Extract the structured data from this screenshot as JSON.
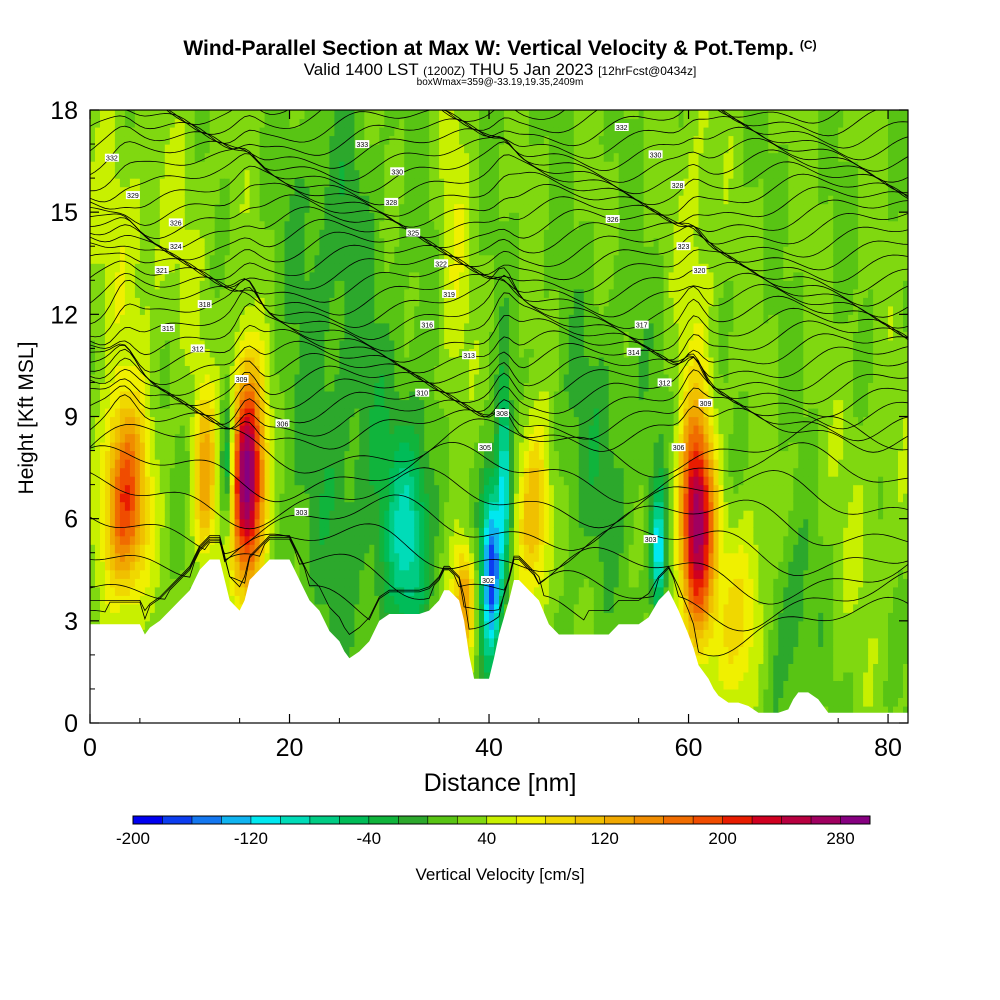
{
  "chart_data": {
    "type": "heatmap",
    "title": "Wind-Parallel Section at Max W: Vertical Velocity & Pot.Temp.",
    "title_tag": "(C)",
    "subtitle_parts": [
      "Valid 1400 LST ",
      "(1200Z)",
      " THU 5 Jan 2023 ",
      "[12hrFcst@0434z]"
    ],
    "subtitle2": "boxWmax=359@-33.19,19.35,2409m",
    "xlabel": "Distance [nm]",
    "ylabel": "Height [Kft MSL]",
    "xlim": [
      0,
      82
    ],
    "ylim": [
      0,
      18
    ],
    "xticks": [
      0,
      20,
      40,
      60,
      80
    ],
    "yticks": [
      0,
      3,
      6,
      9,
      12,
      15,
      18
    ],
    "colorbar": {
      "label": "Vertical Velocity [cm/s]",
      "ticks": [
        -200,
        -120,
        -40,
        40,
        120,
        200,
        280
      ],
      "levels": [
        -200,
        -180,
        -160,
        -140,
        -120,
        -100,
        -80,
        -60,
        -40,
        -20,
        0,
        20,
        40,
        60,
        80,
        100,
        120,
        140,
        160,
        180,
        200,
        220,
        240,
        260,
        280,
        300
      ],
      "colors": [
        "#0000f0",
        "#0c3df0",
        "#1477f0",
        "#10b4f0",
        "#00e8f0",
        "#00dcb8",
        "#00cc84",
        "#00bc58",
        "#10b43c",
        "#2ca82c",
        "#58c414",
        "#80d810",
        "#c8f000",
        "#f0f000",
        "#f0d800",
        "#f0c000",
        "#f0a800",
        "#f08c00",
        "#f06c00",
        "#f04c00",
        "#e81c00",
        "#d00020",
        "#b80040",
        "#a00060",
        "#860080"
      ]
    },
    "terrain": {
      "x": [
        0,
        5,
        5.5,
        6,
        7,
        8,
        9,
        10,
        10.5,
        11,
        12,
        13,
        13.5,
        14,
        15,
        15.5,
        16,
        17,
        18,
        19,
        20,
        21,
        21.5,
        22,
        23,
        23.5,
        24,
        25,
        25.5,
        26,
        27,
        28,
        28.5,
        29,
        30,
        31,
        32,
        33,
        34,
        35,
        35.5,
        36,
        37,
        37.5,
        38,
        38.5,
        39,
        40,
        40.5,
        41,
        42,
        42.5,
        43,
        44,
        45,
        46,
        47,
        48,
        49,
        50,
        51,
        52,
        53,
        54,
        55,
        56,
        57,
        58,
        59,
        60,
        60.5,
        61,
        62,
        62.5,
        63,
        64,
        65,
        66,
        67,
        68,
        69,
        70,
        70.5,
        71,
        72,
        73,
        74,
        75,
        76,
        77,
        78,
        79,
        80,
        81,
        82
      ],
      "y": [
        2.9,
        2.9,
        2.6,
        2.8,
        3.0,
        3.3,
        3.6,
        3.9,
        4.2,
        4.5,
        4.8,
        4.8,
        4.2,
        3.6,
        3.3,
        3.6,
        4.2,
        4.5,
        4.8,
        4.8,
        4.8,
        4.2,
        3.9,
        3.6,
        3.3,
        3.0,
        2.7,
        2.4,
        2.1,
        1.9,
        2.1,
        2.4,
        2.7,
        3.0,
        3.2,
        3.2,
        3.2,
        3.2,
        3.3,
        3.6,
        3.9,
        3.9,
        3.6,
        3.0,
        2.0,
        1.3,
        1.3,
        1.3,
        1.9,
        2.6,
        3.6,
        4.2,
        4.2,
        3.9,
        3.6,
        2.9,
        2.6,
        2.6,
        2.6,
        2.6,
        2.6,
        2.6,
        2.9,
        2.9,
        2.9,
        3.1,
        3.6,
        3.9,
        3.3,
        2.6,
        2.2,
        1.7,
        1.3,
        1.0,
        0.8,
        0.6,
        0.6,
        0.5,
        0.3,
        0.3,
        0.3,
        0.4,
        0.7,
        0.9,
        0.9,
        0.7,
        0.3,
        0.3,
        0.3,
        0.3,
        0.3,
        0.3,
        0.3,
        0.3,
        0.3
      ]
    },
    "w_cells": [
      {
        "x": 3.5,
        "y": 6.5,
        "sx": 1.5,
        "sy": 2.0,
        "w": 180
      },
      {
        "x": 11.5,
        "y": 7.2,
        "sx": 0.8,
        "sy": 1.8,
        "w": 110
      },
      {
        "x": 13.8,
        "y": 7.5,
        "sx": 0.5,
        "sy": 1.5,
        "w": -110
      },
      {
        "x": 15.8,
        "y": 7.2,
        "sx": 1.2,
        "sy": 2.2,
        "w": 290
      },
      {
        "x": 4,
        "y": 14,
        "sx": 6,
        "sy": 3,
        "w": 25
      },
      {
        "x": 27,
        "y": 7,
        "sx": 6,
        "sy": 4,
        "w": -35
      },
      {
        "x": 32,
        "y": 5.5,
        "sx": 1.5,
        "sy": 2,
        "w": -90
      },
      {
        "x": 37.5,
        "y": 3.6,
        "sx": 0.8,
        "sy": 1.2,
        "w": 130
      },
      {
        "x": 36.5,
        "y": 12,
        "sx": 1.2,
        "sy": 5,
        "w": 35
      },
      {
        "x": 40.2,
        "y": 4.5,
        "sx": 0.7,
        "sy": 1.8,
        "w": -200
      },
      {
        "x": 41.5,
        "y": 7.2,
        "sx": 0.5,
        "sy": 2.0,
        "w": -130
      },
      {
        "x": 44.5,
        "y": 6.2,
        "sx": 1.2,
        "sy": 2.0,
        "w": 110
      },
      {
        "x": 51,
        "y": 8,
        "sx": 4,
        "sy": 3,
        "w": -30
      },
      {
        "x": 57,
        "y": 5,
        "sx": 0.5,
        "sy": 1.3,
        "w": -140
      },
      {
        "x": 60.8,
        "y": 5.8,
        "sx": 1.2,
        "sy": 2.3,
        "w": 250
      },
      {
        "x": 65.5,
        "y": 3.2,
        "sx": 1.8,
        "sy": 2.0,
        "w": 70
      },
      {
        "x": 61,
        "y": 14,
        "sx": 1.5,
        "sy": 4,
        "w": 30
      },
      {
        "x": 70,
        "y": 3,
        "sx": 2,
        "sy": 2,
        "w": -40
      },
      {
        "x": 78,
        "y": 6,
        "sx": 3,
        "sy": 3,
        "w": 15
      },
      {
        "x": 24,
        "y": 15,
        "sx": 3,
        "sy": 3,
        "w": -30
      }
    ],
    "isentrope_labels": [
      {
        "x": 2.2,
        "y": 16.6,
        "text": "332"
      },
      {
        "x": 4.3,
        "y": 15.5,
        "text": "329"
      },
      {
        "x": 8.6,
        "y": 14.7,
        "text": "326"
      },
      {
        "x": 8.6,
        "y": 14.0,
        "text": "324"
      },
      {
        "x": 7.2,
        "y": 13.3,
        "text": "321"
      },
      {
        "x": 11.5,
        "y": 12.3,
        "text": "318"
      },
      {
        "x": 7.8,
        "y": 11.6,
        "text": "315"
      },
      {
        "x": 10.8,
        "y": 11.0,
        "text": "312"
      },
      {
        "x": 15.2,
        "y": 10.1,
        "text": "309"
      },
      {
        "x": 19.3,
        "y": 8.8,
        "text": "306"
      },
      {
        "x": 21.2,
        "y": 6.2,
        "text": "303"
      },
      {
        "x": 27.3,
        "y": 17.0,
        "text": "333"
      },
      {
        "x": 30.8,
        "y": 16.2,
        "text": "330"
      },
      {
        "x": 30.2,
        "y": 15.3,
        "text": "328"
      },
      {
        "x": 32.4,
        "y": 14.4,
        "text": "325"
      },
      {
        "x": 35.2,
        "y": 13.5,
        "text": "322"
      },
      {
        "x": 36.0,
        "y": 12.6,
        "text": "319"
      },
      {
        "x": 33.8,
        "y": 11.7,
        "text": "316"
      },
      {
        "x": 38.0,
        "y": 10.8,
        "text": "313"
      },
      {
        "x": 33.3,
        "y": 9.7,
        "text": "310"
      },
      {
        "x": 41.3,
        "y": 9.1,
        "text": "308"
      },
      {
        "x": 39.6,
        "y": 8.1,
        "text": "305"
      },
      {
        "x": 39.9,
        "y": 4.2,
        "text": "302"
      },
      {
        "x": 53.3,
        "y": 17.5,
        "text": "332"
      },
      {
        "x": 56.7,
        "y": 16.7,
        "text": "330"
      },
      {
        "x": 58.9,
        "y": 15.8,
        "text": "328"
      },
      {
        "x": 52.4,
        "y": 14.8,
        "text": "326"
      },
      {
        "x": 59.5,
        "y": 14.0,
        "text": "323"
      },
      {
        "x": 61.1,
        "y": 13.3,
        "text": "320"
      },
      {
        "x": 55.3,
        "y": 11.7,
        "text": "317"
      },
      {
        "x": 54.5,
        "y": 10.9,
        "text": "314"
      },
      {
        "x": 57.6,
        "y": 10.0,
        "text": "312"
      },
      {
        "x": 61.7,
        "y": 9.4,
        "text": "309"
      },
      {
        "x": 59.0,
        "y": 8.1,
        "text": "306"
      },
      {
        "x": 56.2,
        "y": 5.4,
        "text": "303"
      }
    ]
  }
}
